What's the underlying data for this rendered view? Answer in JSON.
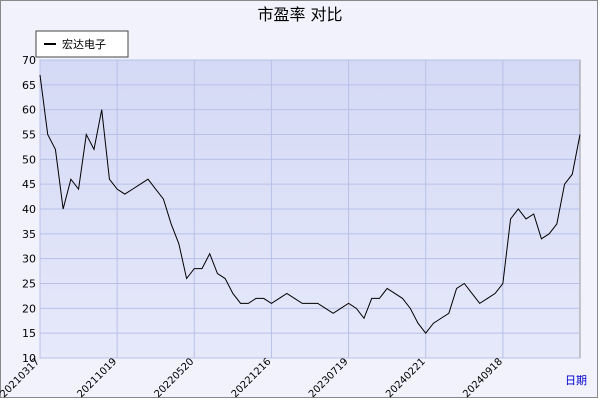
{
  "chart_data": {
    "type": "line",
    "title": "市盈率  对比",
    "x_label": "日期",
    "x": [
      0,
      1,
      2,
      3,
      4,
      5,
      6,
      7,
      8,
      9,
      10,
      11,
      12,
      13,
      14,
      15,
      16,
      17,
      18,
      19,
      20,
      21,
      22,
      23,
      24,
      25,
      26,
      27,
      28,
      29,
      30,
      31,
      32,
      33,
      34,
      35,
      36,
      37,
      38,
      39,
      40,
      41,
      42,
      43,
      44,
      45,
      46,
      47,
      48,
      49,
      50,
      51,
      52,
      53,
      54,
      55,
      56,
      57,
      58,
      59,
      60,
      61,
      62,
      63,
      64,
      65,
      66,
      67,
      68,
      69,
      70
    ],
    "series": [
      {
        "name": "宏达电子",
        "color": "#000000",
        "values": [
          67,
          55,
          52,
          40,
          46,
          44,
          55,
          52,
          60,
          46,
          44,
          43,
          44,
          45,
          46,
          44,
          42,
          37,
          33,
          26,
          28,
          28,
          31,
          27,
          26,
          23,
          21,
          21,
          22,
          22,
          21,
          22,
          23,
          22,
          21,
          21,
          21,
          20,
          19,
          20,
          21,
          20,
          18,
          22,
          22,
          24,
          23,
          22,
          20,
          17,
          15,
          17,
          18,
          19,
          24,
          25,
          23,
          21,
          22,
          23,
          25,
          38,
          40,
          38,
          39,
          34,
          35,
          37,
          45,
          47,
          55
        ]
      }
    ],
    "xlim": [
      0,
      70
    ],
    "xticks": [
      {
        "value": 0,
        "label": "20210317"
      },
      {
        "value": 10,
        "label": "20211019"
      },
      {
        "value": 20,
        "label": "20220520"
      },
      {
        "value": 30,
        "label": "20221216"
      },
      {
        "value": 40,
        "label": "20230719"
      },
      {
        "value": 50,
        "label": "20240221"
      },
      {
        "value": 60,
        "label": "20240918"
      }
    ],
    "ylim": [
      10,
      70
    ],
    "yticks": [
      10,
      15,
      20,
      25,
      30,
      35,
      40,
      45,
      50,
      55,
      60,
      65,
      70
    ],
    "grid": true
  }
}
